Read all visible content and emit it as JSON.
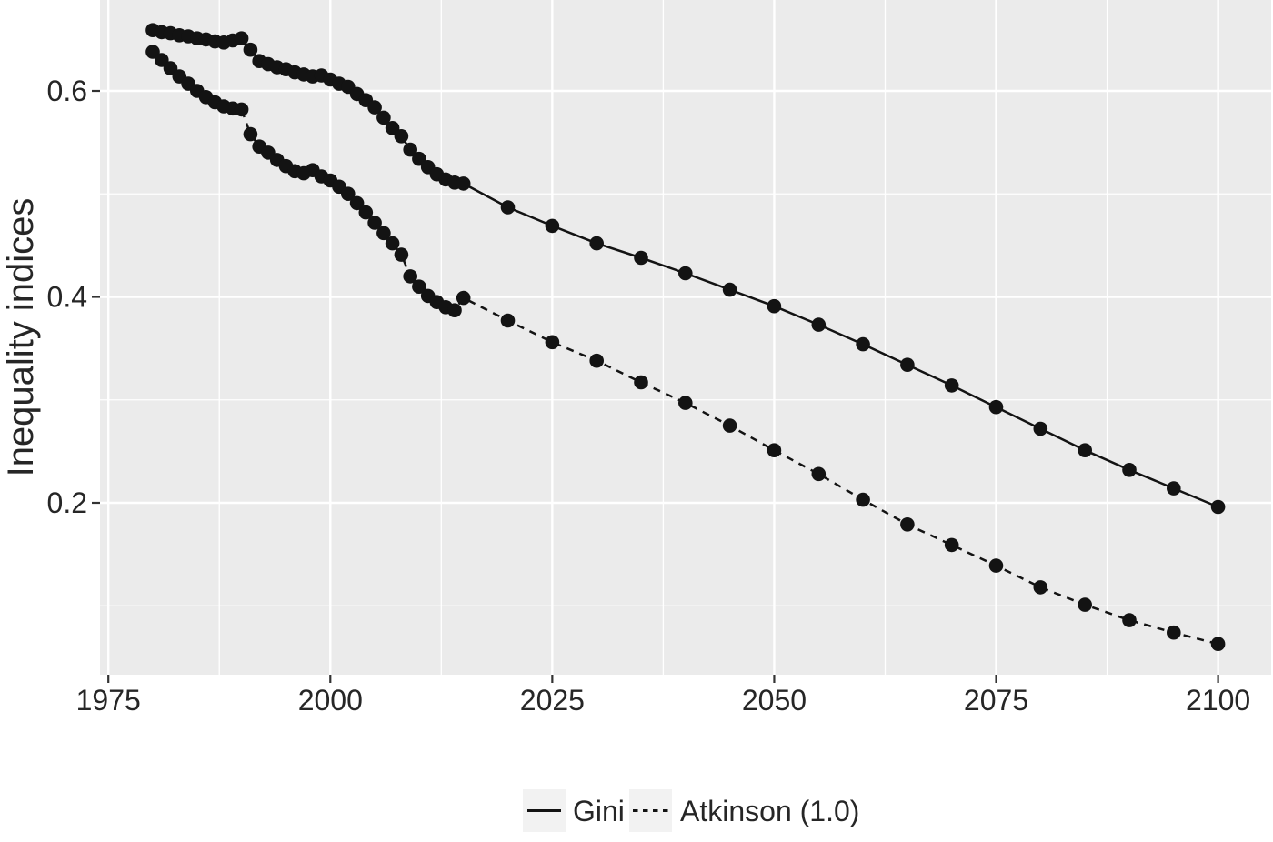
{
  "style": {
    "panel_bg": "#EBEBEB",
    "grid_color": "#FFFFFF",
    "line_color": "#131313",
    "point_color": "#131313",
    "tick_color": "#333333",
    "text_color": "#262626",
    "legend_key_bg": "#F2F2F2",
    "outer_bg": "#FFFFFF"
  },
  "axes": {
    "y_title": "Inequality indices",
    "x_tick_labels": [
      "1975",
      "2000",
      "2025",
      "2050",
      "2075",
      "2100"
    ],
    "y_tick_labels": [
      "0.2",
      "0.4",
      "0.6"
    ]
  },
  "legend": {
    "items": [
      {
        "label": "Gini",
        "line_style": "solid"
      },
      {
        "label": "Atkinson (1.0)",
        "line_style": "dashed"
      }
    ]
  },
  "chart_data": {
    "type": "line",
    "title": "",
    "xlabel": "",
    "ylabel": "Inequality indices",
    "xlim": [
      1974,
      2106
    ],
    "ylim": [
      0.033,
      0.688
    ],
    "x_ticks": [
      1975,
      2000,
      2025,
      2050,
      2075,
      2100
    ],
    "y_ticks": [
      0.2,
      0.4,
      0.6
    ],
    "minor_gridlines_x": [
      1987.5,
      2012.5,
      2037.5,
      2062.5,
      2087.5
    ],
    "minor_gridlines_y": [
      0.1,
      0.3,
      0.5
    ],
    "grid": true,
    "legend_position": "bottom",
    "series": [
      {
        "name": "Gini",
        "line": "solid",
        "marker": "circle",
        "x": [
          1980,
          1981,
          1982,
          1983,
          1984,
          1985,
          1986,
          1987,
          1988,
          1989,
          1990,
          1991,
          1992,
          1993,
          1994,
          1995,
          1996,
          1997,
          1998,
          1999,
          2000,
          2001,
          2002,
          2003,
          2004,
          2005,
          2006,
          2007,
          2008,
          2009,
          2010,
          2011,
          2012,
          2013,
          2014,
          2015,
          2020,
          2025,
          2030,
          2035,
          2040,
          2045,
          2050,
          2055,
          2060,
          2065,
          2070,
          2075,
          2080,
          2085,
          2090,
          2095,
          2100
        ],
        "y": [
          0.659,
          0.657,
          0.656,
          0.654,
          0.653,
          0.651,
          0.65,
          0.648,
          0.647,
          0.649,
          0.651,
          0.64,
          0.629,
          0.626,
          0.623,
          0.621,
          0.618,
          0.616,
          0.614,
          0.615,
          0.611,
          0.607,
          0.604,
          0.597,
          0.591,
          0.584,
          0.574,
          0.564,
          0.556,
          0.543,
          0.534,
          0.526,
          0.519,
          0.514,
          0.511,
          0.51,
          0.487,
          0.469,
          0.452,
          0.438,
          0.423,
          0.407,
          0.391,
          0.373,
          0.354,
          0.334,
          0.314,
          0.293,
          0.272,
          0.251,
          0.232,
          0.214,
          0.196
        ]
      },
      {
        "name": "Atkinson (1.0)",
        "line": "dashed",
        "marker": "circle",
        "x": [
          1980,
          1981,
          1982,
          1983,
          1984,
          1985,
          1986,
          1987,
          1988,
          1989,
          1990,
          1991,
          1992,
          1993,
          1994,
          1995,
          1996,
          1997,
          1998,
          1999,
          2000,
          2001,
          2002,
          2003,
          2004,
          2005,
          2006,
          2007,
          2008,
          2009,
          2010,
          2011,
          2012,
          2013,
          2014,
          2015,
          2020,
          2025,
          2030,
          2035,
          2040,
          2045,
          2050,
          2055,
          2060,
          2065,
          2070,
          2075,
          2080,
          2085,
          2090,
          2095,
          2100
        ],
        "y": [
          0.638,
          0.63,
          0.622,
          0.614,
          0.607,
          0.6,
          0.594,
          0.589,
          0.585,
          0.583,
          0.582,
          0.558,
          0.546,
          0.54,
          0.533,
          0.527,
          0.522,
          0.52,
          0.523,
          0.517,
          0.513,
          0.507,
          0.5,
          0.491,
          0.482,
          0.472,
          0.462,
          0.452,
          0.441,
          0.42,
          0.41,
          0.401,
          0.395,
          0.39,
          0.387,
          0.399,
          0.377,
          0.356,
          0.338,
          0.317,
          0.297,
          0.275,
          0.251,
          0.228,
          0.203,
          0.179,
          0.159,
          0.139,
          0.118,
          0.101,
          0.086,
          0.074,
          0.063
        ]
      }
    ]
  }
}
